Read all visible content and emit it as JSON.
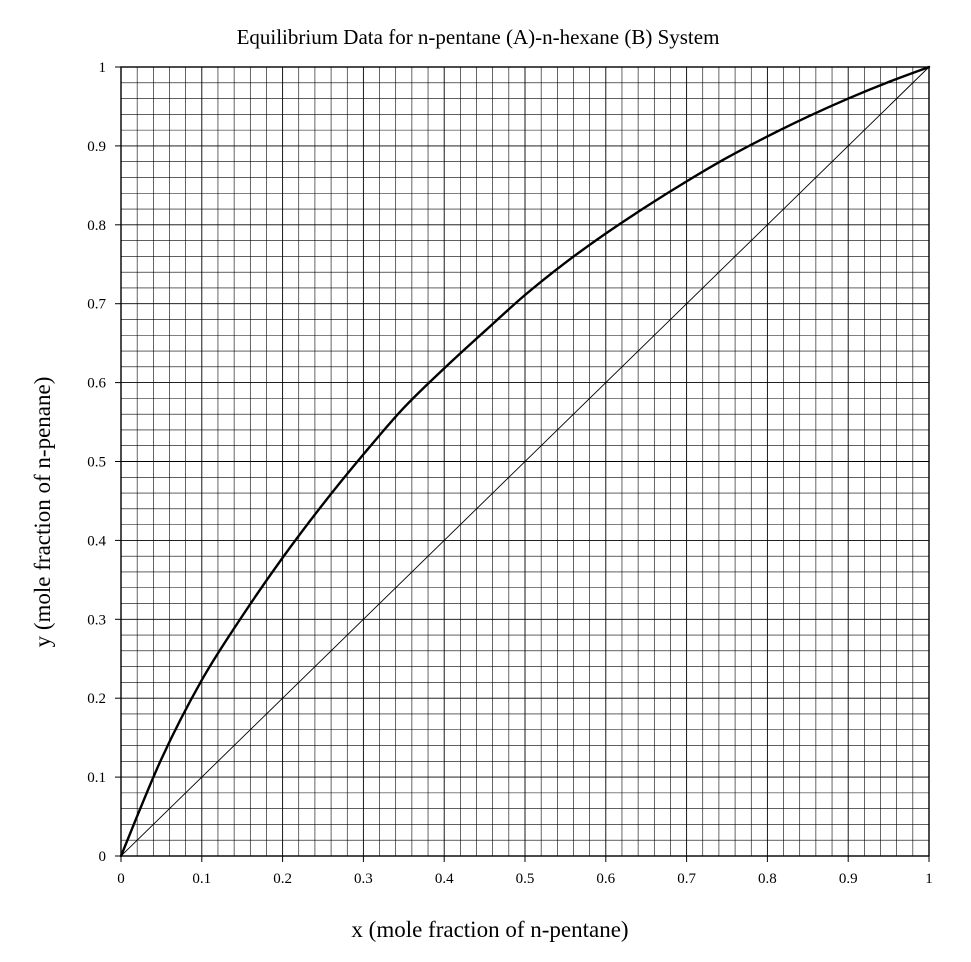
{
  "chart_data": {
    "type": "line",
    "title": "Equilibrium Data for n-pentane (A)-n-hexane (B) System",
    "xlabel": "x (mole fraction of n-pentane)",
    "ylabel": "y (mole fraction of n-penane)",
    "xlim": [
      0,
      1
    ],
    "ylim": [
      0,
      1
    ],
    "x_ticks": [
      "0",
      "0.1",
      "0.2",
      "0.3",
      "0.4",
      "0.5",
      "0.6",
      "0.7",
      "0.8",
      "0.9",
      "1"
    ],
    "y_ticks": [
      "0",
      "0.1",
      "0.2",
      "0.3",
      "0.4",
      "0.5",
      "0.6",
      "0.7",
      "0.8",
      "0.9",
      "1"
    ],
    "grid": true,
    "minor_divisions_per_major": 5,
    "series": [
      {
        "style": "thick",
        "color": "#000000",
        "x": [
          0,
          0.05,
          0.1,
          0.15,
          0.2,
          0.25,
          0.3,
          0.35,
          0.4,
          0.45,
          0.5,
          0.55,
          0.6,
          0.65,
          0.7,
          0.75,
          0.8,
          0.85,
          0.9,
          0.95,
          1.0
        ],
        "y": [
          0,
          0.123,
          0.223,
          0.304,
          0.378,
          0.446,
          0.509,
          0.568,
          0.618,
          0.665,
          0.711,
          0.752,
          0.789,
          0.823,
          0.855,
          0.885,
          0.912,
          0.937,
          0.96,
          0.981,
          1.0
        ]
      },
      {
        "style": "thin",
        "color": "#000000",
        "x": [
          0,
          1
        ],
        "y": [
          0,
          1
        ]
      }
    ]
  }
}
